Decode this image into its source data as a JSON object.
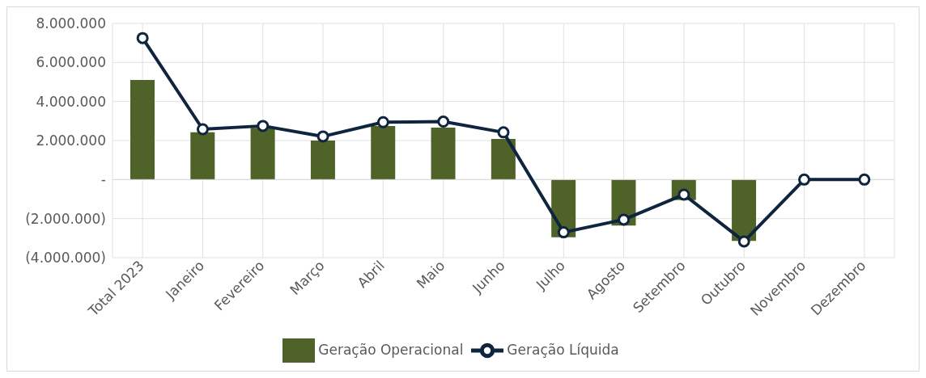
{
  "chart_data": {
    "type": "bar",
    "categories": [
      "Total 2023",
      "Janeiro",
      "Fevereiro",
      "Março",
      "Abril",
      "Maio",
      "Junho",
      "Julho",
      "Agosto",
      "Setembro",
      "Outubro",
      "Novembro",
      "Dezembro"
    ],
    "series": [
      {
        "name": "Geração Operacional",
        "color": "#4f6228",
        "values": [
          5100000,
          2420000,
          2650000,
          2000000,
          2750000,
          2660000,
          2080000,
          -2960000,
          -2350000,
          -1050000,
          -3140000,
          0,
          0
        ]
      },
      {
        "name": "Geração Líquida",
        "type": "line",
        "color": "#0f243e",
        "marker": "circle",
        "values": [
          7250000,
          2580000,
          2750000,
          2210000,
          2940000,
          2970000,
          2420000,
          -2700000,
          -2050000,
          -770000,
          -3170000,
          0,
          0
        ]
      }
    ],
    "ylim": [
      -4000000,
      8000000
    ],
    "yticks": [
      {
        "value": -4000000,
        "label": "(4.000.000)"
      },
      {
        "value": -2000000,
        "label": "(2.000.000)"
      },
      {
        "value": 0,
        "label": "-"
      },
      {
        "value": 2000000,
        "label": "2.000.000"
      },
      {
        "value": 4000000,
        "label": "4.000.000"
      },
      {
        "value": 6000000,
        "label": "6.000.000"
      },
      {
        "value": 8000000,
        "label": "8.000.000"
      }
    ],
    "grid": true,
    "legend": "bottom"
  }
}
